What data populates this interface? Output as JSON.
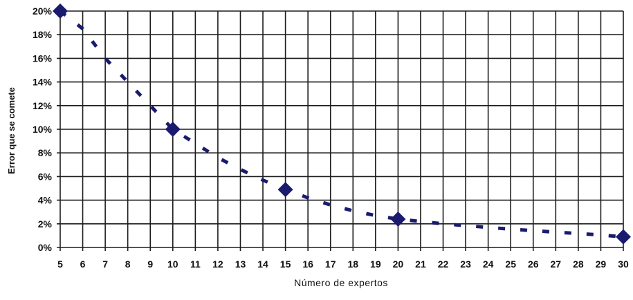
{
  "chart_data": {
    "type": "line",
    "title": "",
    "xlabel": "Número de expertos",
    "ylabel": "Error que se comete",
    "x_ticks": [
      5,
      6,
      7,
      8,
      9,
      10,
      11,
      12,
      13,
      14,
      15,
      16,
      17,
      18,
      19,
      20,
      21,
      22,
      23,
      24,
      25,
      26,
      27,
      28,
      29,
      30
    ],
    "y_ticks": [
      "0%",
      "2%",
      "4%",
      "6%",
      "8%",
      "10%",
      "12%",
      "14%",
      "16%",
      "18%",
      "20%"
    ],
    "xlim": [
      5,
      30
    ],
    "ylim": [
      0,
      20
    ],
    "y_unit": "%",
    "grid": true,
    "legend": "none",
    "series": [
      {
        "line_style": "dashed",
        "marker": "diamond",
        "color": "#1a1a6e",
        "points": [
          {
            "x": 5,
            "y": 20
          },
          {
            "x": 10,
            "y": 10
          },
          {
            "x": 15,
            "y": 4.9
          },
          {
            "x": 20,
            "y": 2.4
          },
          {
            "x": 30,
            "y": 0.9
          }
        ],
        "curve": [
          {
            "x": 5,
            "y": 20
          },
          {
            "x": 6,
            "y": 18.5
          },
          {
            "x": 7,
            "y": 16
          },
          {
            "x": 8,
            "y": 14
          },
          {
            "x": 9,
            "y": 12
          },
          {
            "x": 10,
            "y": 10
          },
          {
            "x": 11,
            "y": 8.8
          },
          {
            "x": 12,
            "y": 7.6
          },
          {
            "x": 13,
            "y": 6.6
          },
          {
            "x": 14,
            "y": 5.7
          },
          {
            "x": 15,
            "y": 4.9
          },
          {
            "x": 16,
            "y": 4.2
          },
          {
            "x": 17,
            "y": 3.6
          },
          {
            "x": 18,
            "y": 3.1
          },
          {
            "x": 19,
            "y": 2.7
          },
          {
            "x": 20,
            "y": 2.4
          },
          {
            "x": 21,
            "y": 2.2
          },
          {
            "x": 22,
            "y": 2.0
          },
          {
            "x": 23,
            "y": 1.85
          },
          {
            "x": 24,
            "y": 1.7
          },
          {
            "x": 25,
            "y": 1.55
          },
          {
            "x": 26,
            "y": 1.42
          },
          {
            "x": 27,
            "y": 1.3
          },
          {
            "x": 28,
            "y": 1.18
          },
          {
            "x": 29,
            "y": 1.05
          },
          {
            "x": 30,
            "y": 0.9
          }
        ]
      }
    ]
  },
  "colors": {
    "grid": "#1c1c1c",
    "series": "#1a1a6e",
    "background": "#ffffff"
  }
}
